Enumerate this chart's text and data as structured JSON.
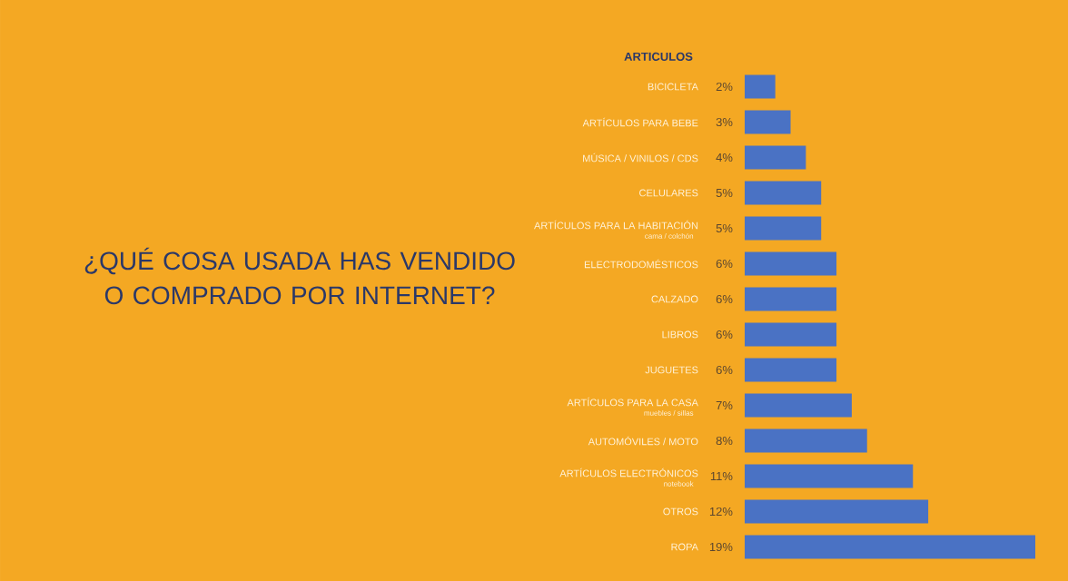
{
  "chart_data": {
    "type": "bar",
    "orientation": "horizontal",
    "title": "¿QUÉ COSA USADA HAS VENDIDO O COMPRADO POR INTERNET?",
    "categories": [
      "BICICLETA",
      "ARTÍCULOS PARA BEBE",
      "MÚSICA / VINILOS / CDS",
      "CELULARES",
      "ARTÍCULOS PARA LA HABITACIÓN",
      "ELECTRODOMÉSTICOS",
      "CALZADO",
      "LIBROS",
      "JUGUETES",
      "ARTÍCULOS PARA LA CASA",
      "AUTOMÓVILES / MOTO",
      "ARTÍCULOS ELECTRÓNICOS",
      "OTROS",
      "ROPA"
    ],
    "values": [
      2,
      3,
      4,
      5,
      5,
      6,
      6,
      6,
      6,
      7,
      8,
      11,
      12,
      19
    ],
    "value_labels": [
      "2%",
      "3%",
      "4%",
      "5%",
      "5%",
      "6%",
      "6%",
      "6%",
      "6%",
      "7%",
      "8%",
      "11%",
      "12%",
      "19%"
    ],
    "color": "#4a72c4",
    "annotations": [
      "ARTICULOS",
      "cama / colchón",
      "muebles / sillas",
      "notebook"
    ]
  }
}
